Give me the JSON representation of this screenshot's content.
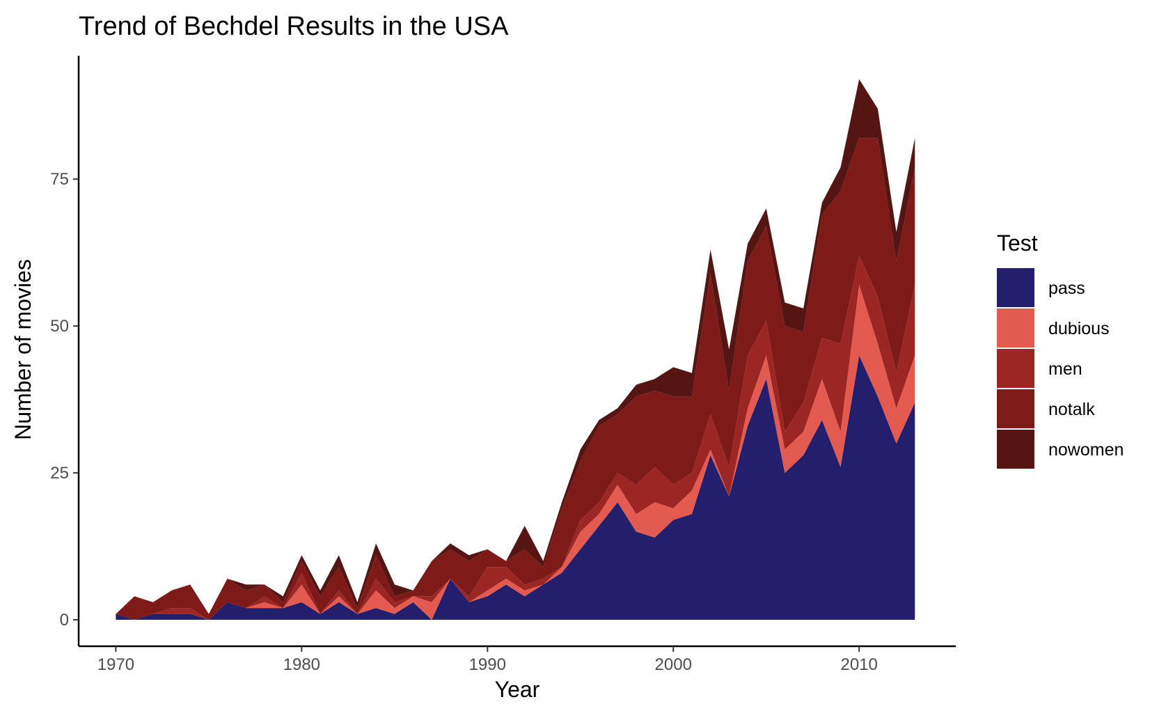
{
  "chart_data": {
    "type": "area",
    "stacked": true,
    "title": "Trend of Bechdel Results in the USA",
    "xlabel": "Year",
    "ylabel": "Number of movies",
    "xlim": [
      1968,
      2015.2
    ],
    "ylim": [
      -4.5,
      96
    ],
    "x_ticks": [
      1970,
      1980,
      1990,
      2000,
      2010
    ],
    "y_ticks": [
      0,
      25,
      50,
      75
    ],
    "grid": false,
    "legend": {
      "title": "Test",
      "placement": "right"
    },
    "x": [
      1970,
      1971,
      1972,
      1973,
      1974,
      1975,
      1976,
      1977,
      1978,
      1979,
      1980,
      1981,
      1982,
      1983,
      1984,
      1985,
      1986,
      1987,
      1988,
      1989,
      1990,
      1991,
      1992,
      1993,
      1994,
      1995,
      1996,
      1997,
      1998,
      1999,
      2000,
      2001,
      2002,
      2003,
      2004,
      2005,
      2006,
      2007,
      2008,
      2009,
      2010,
      2011,
      2012,
      2013
    ],
    "series": [
      {
        "name": "pass",
        "color": "#231F6D",
        "values": [
          1,
          0,
          1,
          1,
          1,
          0,
          3,
          2,
          2,
          2,
          3,
          1,
          3,
          1,
          2,
          1,
          3,
          0,
          7,
          3,
          4,
          6,
          4,
          6,
          8,
          12,
          16,
          20,
          15,
          14,
          17,
          18,
          28,
          21,
          33,
          41,
          25,
          28,
          34,
          26,
          45,
          38,
          30,
          37
        ]
      },
      {
        "name": "dubious",
        "color": "#E35A50",
        "values": [
          0,
          0,
          0,
          0,
          0,
          0,
          0,
          0,
          1,
          0,
          3,
          0,
          1,
          0,
          3,
          1,
          1,
          3,
          0,
          0,
          1,
          1,
          1,
          0,
          1,
          3,
          2,
          3,
          3,
          6,
          2,
          4,
          1,
          0,
          3,
          4,
          4,
          4,
          7,
          6,
          12,
          9,
          6,
          8
        ]
      },
      {
        "name": "men",
        "color": "#9C2623",
        "values": [
          0,
          0,
          0,
          1,
          1,
          0,
          0,
          0,
          1,
          0,
          2,
          0,
          1,
          0,
          2,
          1,
          0,
          1,
          0,
          1,
          4,
          2,
          1,
          1,
          0,
          2,
          2,
          2,
          5,
          6,
          4,
          3,
          6,
          5,
          9,
          6,
          3,
          5,
          7,
          15,
          5,
          8,
          6,
          12
        ]
      },
      {
        "name": "notalk",
        "color": "#7E1A17",
        "values": [
          0,
          4,
          2,
          3,
          4,
          1,
          4,
          3,
          2,
          1,
          2,
          3,
          4,
          1,
          4,
          1,
          1,
          6,
          5,
          6,
          3,
          1,
          6,
          2,
          10,
          10,
          13,
          10,
          15,
          13,
          15,
          13,
          24,
          13,
          16,
          16,
          18,
          12,
          21,
          26,
          20,
          27,
          19,
          20
        ]
      },
      {
        "name": "nowomen",
        "color": "#541513",
        "values": [
          0,
          0,
          0,
          0,
          0,
          0,
          0,
          1,
          0,
          1,
          1,
          1,
          2,
          1,
          2,
          2,
          0,
          0,
          1,
          1,
          0,
          0,
          4,
          1,
          1,
          2,
          1,
          1,
          2,
          2,
          5,
          4,
          4,
          7,
          3,
          3,
          4,
          4,
          2,
          4,
          10,
          5,
          5,
          5
        ]
      }
    ]
  }
}
